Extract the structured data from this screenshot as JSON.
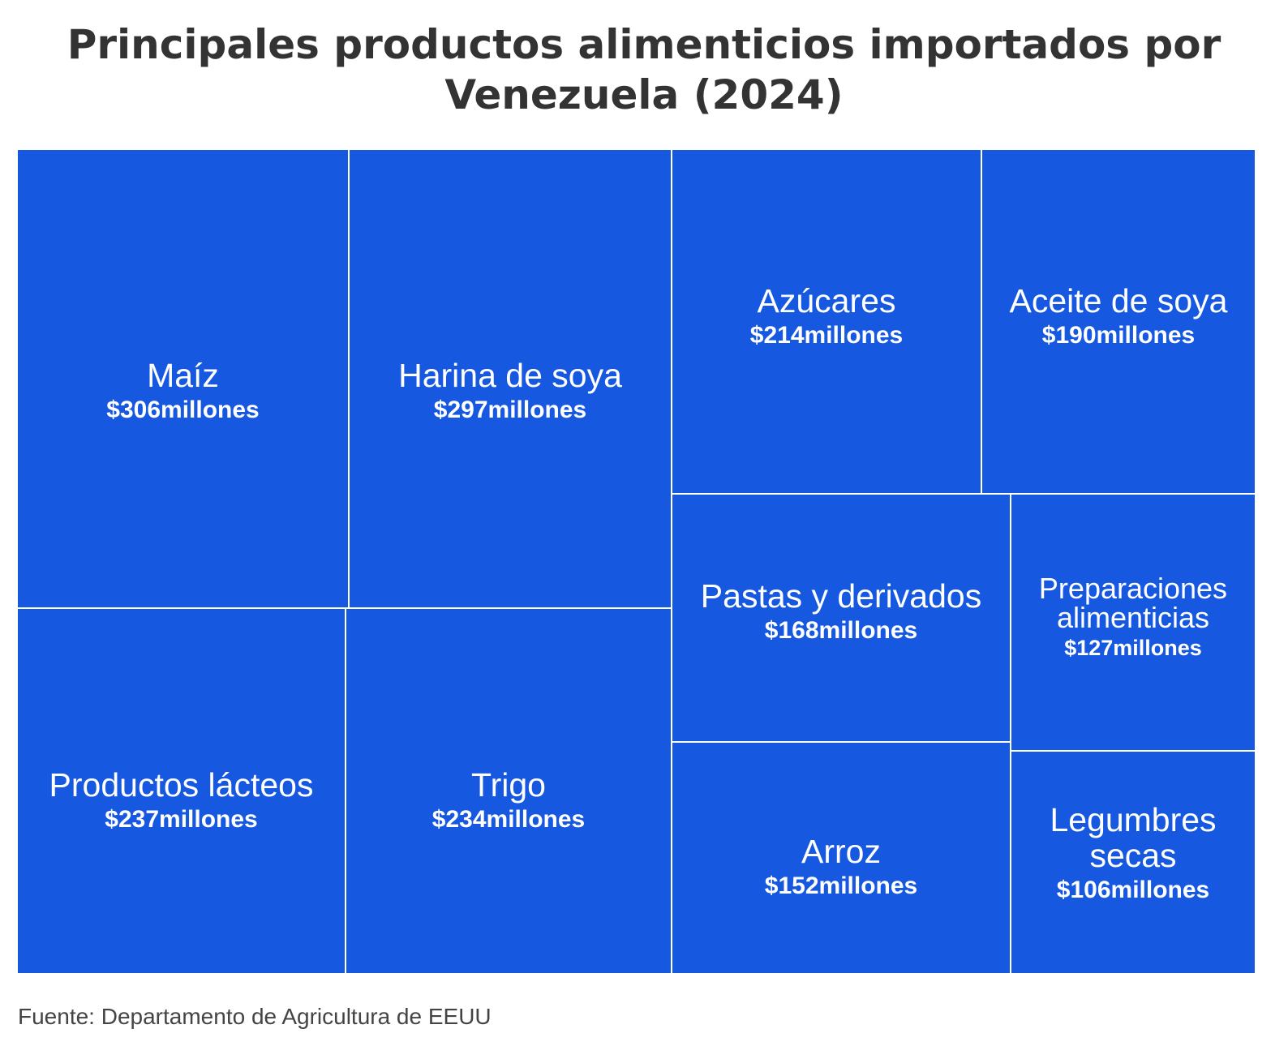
{
  "title": "Principales productos alimenticios importados por Venezuela (2024)",
  "source": "Fuente: Departamento de Agricultura de EEUU",
  "colors": {
    "tile": "#1658e0",
    "border": "#ffffff",
    "title": "#333333"
  },
  "chart_data": {
    "type": "treemap",
    "title": "Principales productos alimenticios importados por Venezuela (2024)",
    "unit": "millones",
    "items": [
      {
        "name": "Maíz",
        "value": 306,
        "value_label": "$306millones"
      },
      {
        "name": "Harina de soya",
        "value": 297,
        "value_label": "$297millones"
      },
      {
        "name": "Productos lácteos",
        "value": 237,
        "value_label": "$237millones"
      },
      {
        "name": "Trigo",
        "value": 234,
        "value_label": "$234millones"
      },
      {
        "name": "Azúcares",
        "value": 214,
        "value_label": "$214millones"
      },
      {
        "name": "Aceite de soya",
        "value": 190,
        "value_label": "$190millones"
      },
      {
        "name": "Pastas y derivados",
        "value": 168,
        "value_label": "$168millones"
      },
      {
        "name": "Arroz",
        "value": 152,
        "value_label": "$152millones"
      },
      {
        "name": "Preparaciones alimenticias",
        "value": 127,
        "value_label": "$127millones"
      },
      {
        "name": "Legumbres secas",
        "value": 106,
        "value_label": "$106millones"
      }
    ]
  }
}
